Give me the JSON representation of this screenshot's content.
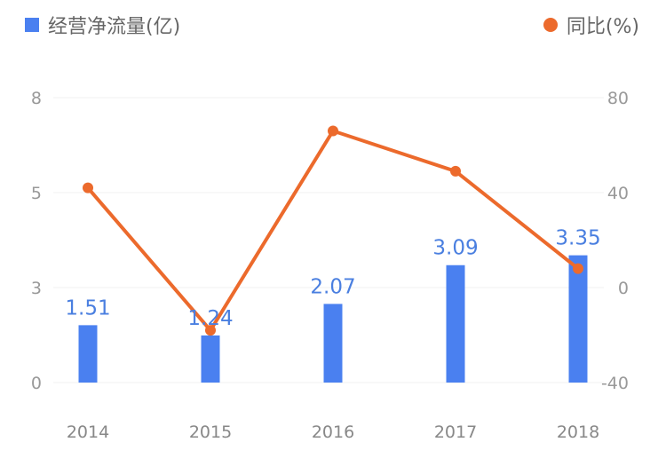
{
  "legend": {
    "bar_label": "经营净流量(亿)",
    "line_label": "同比(%)"
  },
  "colors": {
    "bar": "#4a80f0",
    "line": "#ec6a2c",
    "label": "#4a7fe0",
    "axis_text": "#999999",
    "grid": "#f0f0f0"
  },
  "chart_data": {
    "type": "bar",
    "categories": [
      "2014",
      "2015",
      "2016",
      "2017",
      "2018"
    ],
    "series": [
      {
        "name": "经营净流量(亿)",
        "type": "bar",
        "axis": "left",
        "values": [
          1.51,
          1.24,
          2.07,
          3.09,
          3.35
        ]
      },
      {
        "name": "同比(%)",
        "type": "line",
        "axis": "right",
        "values": [
          42,
          -18,
          66,
          49,
          8
        ]
      }
    ],
    "y_left": {
      "ticks": [
        "0",
        "3",
        "5",
        "8"
      ],
      "range": [
        0,
        7.5
      ]
    },
    "y_right": {
      "ticks": [
        "-40",
        "0",
        "40",
        "80"
      ],
      "range": [
        -40,
        80
      ]
    },
    "data_labels": [
      "1.51",
      "1.24",
      "2.07",
      "3.09",
      "3.35"
    ],
    "grid": true,
    "legend_position": "top"
  }
}
